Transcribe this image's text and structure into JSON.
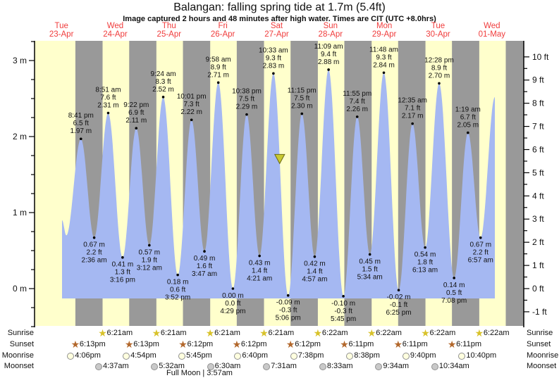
{
  "chart_data": {
    "type": "area",
    "title": "Balangan: falling  spring tide at 1.7m (5.4ft)",
    "subtitle": "Image captured 2 hours and 48 minutes after high water. Times are CIT (UTC +8.0hrs)",
    "days": [
      {
        "name": "Tue",
        "date": "23-Apr"
      },
      {
        "name": "Wed",
        "date": "24-Apr"
      },
      {
        "name": "Thu",
        "date": "25-Apr"
      },
      {
        "name": "Fri",
        "date": "26-Apr"
      },
      {
        "name": "Sat",
        "date": "27-Apr"
      },
      {
        "name": "Sun",
        "date": "28-Apr"
      },
      {
        "name": "Mon",
        "date": "29-Apr"
      },
      {
        "name": "Tue",
        "date": "30-Apr"
      },
      {
        "name": "Wed",
        "date": "01-May"
      }
    ],
    "y_axis_left": {
      "unit": "m",
      "min": -0.5,
      "max": 3.25,
      "labeled_ticks": [
        {
          "v": 0,
          "label": "0 m"
        },
        {
          "v": 1,
          "label": "1 m"
        },
        {
          "v": 2,
          "label": "2 m"
        },
        {
          "v": 3,
          "label": "3 m"
        }
      ]
    },
    "y_axis_right": {
      "unit": "ft",
      "min": -1,
      "max": 10,
      "labeled_ticks": [
        {
          "v": -1,
          "label": "-1 ft"
        },
        {
          "v": 0,
          "label": "0 ft"
        },
        {
          "v": 1,
          "label": "1 ft"
        },
        {
          "v": 2,
          "label": "2 ft"
        },
        {
          "v": 3,
          "label": "3 ft"
        },
        {
          "v": 4,
          "label": "4 ft"
        },
        {
          "v": 5,
          "label": "5 ft"
        },
        {
          "v": 6,
          "label": "6 ft"
        },
        {
          "v": 7,
          "label": "7 ft"
        },
        {
          "v": 8,
          "label": "8 ft"
        },
        {
          "v": 9,
          "label": "9 ft"
        },
        {
          "v": 10,
          "label": "10 ft"
        }
      ]
    },
    "tide_events": [
      {
        "d": 0,
        "time": "12:15 pm",
        "v": 0.9,
        "type": "edge",
        "labeled": false
      },
      {
        "d": 0,
        "time": "2:10 pm",
        "v": 0.7,
        "type": "low",
        "labeled": false
      },
      {
        "d": 0,
        "time": "8:41 pm",
        "ft": "6.5 ft",
        "m": "1.97 m",
        "type": "high",
        "labeled": true
      },
      {
        "d": 1,
        "time": "2:36 am",
        "m": "0.67 m",
        "ft": "2.2 ft",
        "type": "low",
        "labeled": true
      },
      {
        "d": 1,
        "time": "8:51 am",
        "ft": "7.6 ft",
        "m": "2.31 m",
        "type": "high",
        "labeled": true
      },
      {
        "d": 1,
        "time": "3:16 pm",
        "m": "0.41 m",
        "ft": "1.3 ft",
        "type": "low",
        "labeled": true
      },
      {
        "d": 1,
        "time": "9:22 pm",
        "ft": "6.9 ft",
        "m": "2.11 m",
        "type": "high",
        "labeled": true
      },
      {
        "d": 2,
        "time": "3:12 am",
        "m": "0.57 m",
        "ft": "1.9 ft",
        "type": "low",
        "labeled": true
      },
      {
        "d": 2,
        "time": "9:24 am",
        "ft": "8.3 ft",
        "m": "2.52 m",
        "type": "high",
        "labeled": true
      },
      {
        "d": 2,
        "time": "3:52 pm",
        "m": "0.18 m",
        "ft": "0.6 ft",
        "type": "low",
        "labeled": true
      },
      {
        "d": 2,
        "time": "10:01 pm",
        "ft": "7.3 ft",
        "m": "2.22 m",
        "type": "high",
        "labeled": true
      },
      {
        "d": 3,
        "time": "3:47 am",
        "m": "0.49 m",
        "ft": "1.6 ft",
        "type": "low",
        "labeled": true
      },
      {
        "d": 3,
        "time": "9:58 am",
        "ft": "8.9 ft",
        "m": "2.71 m",
        "type": "high",
        "labeled": true
      },
      {
        "d": 3,
        "time": "4:29 pm",
        "m": "0.00 m",
        "ft": "0.0 ft",
        "type": "low",
        "labeled": true
      },
      {
        "d": 3,
        "time": "10:38 pm",
        "ft": "7.5 ft",
        "m": "2.29 m",
        "type": "high",
        "labeled": true
      },
      {
        "d": 4,
        "time": "4:21 am",
        "m": "0.43 m",
        "ft": "1.4 ft",
        "type": "low",
        "labeled": true
      },
      {
        "d": 4,
        "time": "10:33 am",
        "ft": "9.3 ft",
        "m": "2.83 m",
        "type": "high",
        "labeled": true
      },
      {
        "d": 4,
        "time": "5:06 pm",
        "m": "-0.09 m",
        "ft": "-0.3 ft",
        "type": "low",
        "labeled": true
      },
      {
        "d": 4,
        "time": "11:15 pm",
        "ft": "7.5 ft",
        "m": "2.30 m",
        "type": "high",
        "labeled": true
      },
      {
        "d": 5,
        "time": "4:57 am",
        "m": "0.42 m",
        "ft": "1.4 ft",
        "type": "low",
        "labeled": true
      },
      {
        "d": 5,
        "time": "11:09 am",
        "ft": "9.4 ft",
        "m": "2.88 m",
        "type": "high",
        "labeled": true
      },
      {
        "d": 5,
        "time": "5:45 pm",
        "m": "-0.10 m",
        "ft": "-0.3 ft",
        "type": "low",
        "labeled": true
      },
      {
        "d": 5,
        "time": "11:55 pm",
        "ft": "7.4 ft",
        "m": "2.26 m",
        "type": "high",
        "labeled": true
      },
      {
        "d": 6,
        "time": "5:34 am",
        "m": "0.45 m",
        "ft": "1.5 ft",
        "type": "low",
        "labeled": true
      },
      {
        "d": 6,
        "time": "11:48 am",
        "ft": "9.3 ft",
        "m": "2.84 m",
        "type": "high",
        "labeled": true
      },
      {
        "d": 6,
        "time": "6:25 pm",
        "m": "-0.02 m",
        "ft": "-0.1 ft",
        "type": "low",
        "labeled": true
      },
      {
        "d": 7,
        "time": "12:35 am",
        "ft": "7.1 ft",
        "m": "2.17 m",
        "type": "high",
        "labeled": true
      },
      {
        "d": 7,
        "time": "6:13 am",
        "m": "0.54 m",
        "ft": "1.8 ft",
        "type": "low",
        "labeled": true
      },
      {
        "d": 7,
        "time": "12:28 pm",
        "ft": "8.9 ft",
        "m": "2.70 m",
        "type": "high",
        "labeled": true
      },
      {
        "d": 7,
        "time": "7:08 pm",
        "m": "0.14 m",
        "ft": "0.5 ft",
        "type": "low",
        "labeled": true
      },
      {
        "d": 8,
        "time": "1:19 am",
        "ft": "6.7 ft",
        "m": "2.05 m",
        "type": "high",
        "labeled": true
      },
      {
        "d": 8,
        "time": "6:57 am",
        "m": "0.67 m",
        "ft": "2.2 ft",
        "type": "low",
        "labeled": true
      },
      {
        "d": 8,
        "time": "1:20 pm",
        "v": 2.52,
        "type": "edge",
        "labeled": false
      }
    ],
    "current_marker": {
      "value_m": 1.7,
      "day": 4,
      "time": "1:21 pm",
      "shape": "down-arrow"
    }
  },
  "astro": {
    "row_labels": [
      "Sunrise",
      "Sunset",
      "Moonrise",
      "Moonset"
    ],
    "sunrise": [
      {
        "d": 1,
        "time": "6:21am"
      },
      {
        "d": 2,
        "time": "6:21am"
      },
      {
        "d": 3,
        "time": "6:21am"
      },
      {
        "d": 4,
        "time": "6:21am"
      },
      {
        "d": 5,
        "time": "6:22am"
      },
      {
        "d": 6,
        "time": "6:22am"
      },
      {
        "d": 7,
        "time": "6:22am"
      },
      {
        "d": 8,
        "time": "6:22am"
      }
    ],
    "sunset": [
      {
        "d": 0,
        "time": "6:13pm"
      },
      {
        "d": 1,
        "time": "6:13pm"
      },
      {
        "d": 2,
        "time": "6:12pm"
      },
      {
        "d": 3,
        "time": "6:12pm"
      },
      {
        "d": 4,
        "time": "6:12pm"
      },
      {
        "d": 5,
        "time": "6:11pm"
      },
      {
        "d": 6,
        "time": "6:11pm"
      },
      {
        "d": 7,
        "time": "6:11pm"
      }
    ],
    "moonrise": [
      {
        "d": 0,
        "time": "4:06pm"
      },
      {
        "d": 1,
        "time": "4:54pm"
      },
      {
        "d": 2,
        "time": "5:45pm"
      },
      {
        "d": 3,
        "time": "6:40pm"
      },
      {
        "d": 4,
        "time": "7:38pm"
      },
      {
        "d": 5,
        "time": "8:38pm"
      },
      {
        "d": 6,
        "time": "9:40pm"
      },
      {
        "d": 7,
        "time": "10:40pm"
      }
    ],
    "moonset": [
      {
        "d": 1,
        "time": "4:37am"
      },
      {
        "d": 2,
        "time": "5:32am"
      },
      {
        "d": 3,
        "time": "6:30am"
      },
      {
        "d": 4,
        "time": "7:31am"
      },
      {
        "d": 5,
        "time": "8:33am"
      },
      {
        "d": 6,
        "time": "9:34am"
      },
      {
        "d": 7,
        "time": "10:34am"
      }
    ],
    "footer": "Full Moon | 3:57am"
  },
  "icons": {
    "sun_marker": "★"
  },
  "colors": {
    "day_band": "#ffffcc",
    "night_band": "#999999",
    "water": "#a5b8f2",
    "date_label": "#f03c3c",
    "text": "#111111",
    "marker_fill": "#c9c930",
    "marker_stroke": "#6b6b14",
    "sunrise_star": "#d8c22a",
    "sunset_star": "#b2672b",
    "moonrise_fill": "#ffffdf",
    "moonset_fill": "#c9c9c9",
    "moon_stroke": "#909090"
  }
}
